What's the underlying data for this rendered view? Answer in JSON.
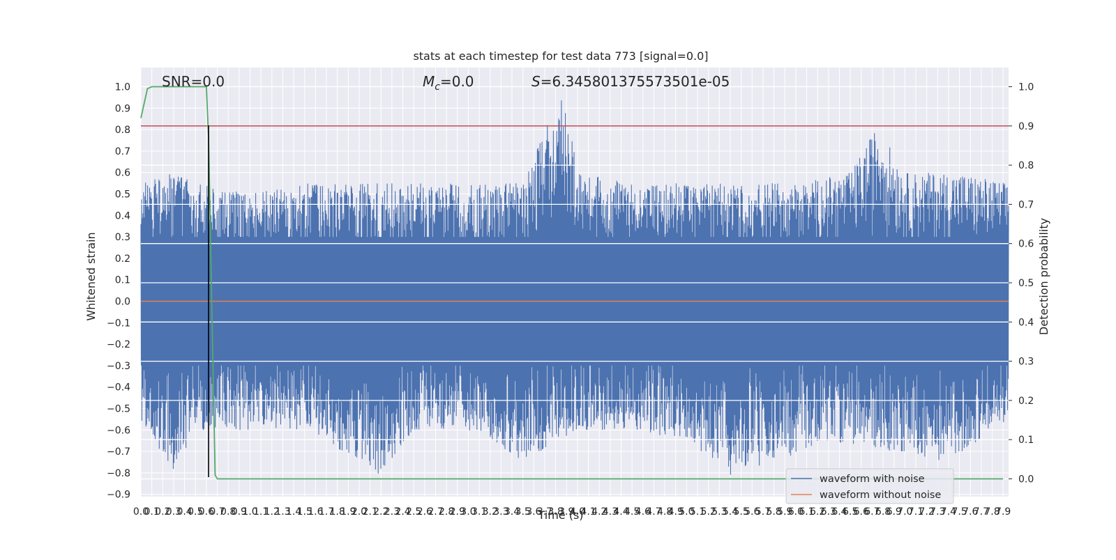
{
  "chart_data": {
    "type": "line",
    "title": "stats at each timestep for test data 773 [signal=0.0]",
    "xlabel": "Time (s)",
    "ylabel": "Whitened strain",
    "y2label": "Detection probability",
    "xlim": [
      0.0,
      7.95
    ],
    "ylim": [
      -0.9,
      1.0
    ],
    "y2lim": [
      0.0,
      1.0
    ],
    "x_ticks": [
      0.0,
      0.1,
      0.2,
      0.3,
      0.4,
      0.5,
      0.6,
      0.7,
      0.8,
      0.9,
      1.0,
      1.1,
      1.2,
      1.3,
      1.4,
      1.5,
      1.6,
      1.7,
      1.8,
      1.9,
      2.0,
      2.1,
      2.2,
      2.3,
      2.4,
      2.5,
      2.6,
      2.7,
      2.8,
      2.9,
      3.0,
      3.1,
      3.2,
      3.3,
      3.4,
      3.5,
      3.6,
      3.7,
      3.8,
      3.9,
      4.0,
      4.1,
      4.2,
      4.3,
      4.4,
      4.5,
      4.6,
      4.7,
      4.8,
      4.9,
      5.0,
      5.1,
      5.2,
      5.3,
      5.4,
      5.5,
      5.6,
      5.7,
      5.8,
      5.9,
      6.0,
      6.1,
      6.2,
      6.3,
      6.4,
      6.5,
      6.6,
      6.7,
      6.8,
      6.9,
      7.0,
      7.1,
      7.2,
      7.3,
      7.4,
      7.5,
      7.6,
      7.7,
      7.8,
      7.9
    ],
    "x_tick_labels": [
      "0.0",
      "0.1",
      "0.2",
      "0.3",
      "0.4",
      "0.5",
      "0.6",
      "0.7",
      "0.8",
      "0.9",
      "1.0",
      "1.1",
      "1.2",
      "1.3",
      "1.4",
      "1.5",
      "1.6",
      "1.7",
      "1.8",
      "1.9",
      "2.0",
      "2.1",
      "2.2",
      "2.3",
      "2.4",
      "2.5",
      "2.6",
      "2.7",
      "2.8",
      "2.9",
      "3.0",
      "3.1",
      "3.2",
      "3.3",
      "3.4",
      "3.5",
      "3.6",
      "3.7",
      "3.8",
      "3.9",
      "4.0",
      "4.1",
      "4.2",
      "4.3",
      "4.4",
      "4.5",
      "4.6",
      "4.7",
      "4.8",
      "4.9",
      "5.0",
      "5.1",
      "5.2",
      "5.3",
      "5.4",
      "5.5",
      "5.6",
      "5.7",
      "5.8",
      "5.9",
      "6.0",
      "6.1",
      "6.2",
      "6.3",
      "6.4",
      "6.5",
      "6.6",
      "6.7",
      "6.8",
      "6.9",
      "7.0",
      "7.1",
      "7.2",
      "7.3",
      "7.4",
      "7.5",
      "7.6",
      "7.7",
      "7.8",
      "7.9"
    ],
    "y_ticks": [
      1.0,
      0.9,
      0.8,
      0.7,
      0.6,
      0.5,
      0.4,
      0.3,
      0.2,
      0.1,
      0.0,
      -0.1,
      -0.2,
      -0.3,
      -0.4,
      -0.5,
      -0.6,
      -0.7,
      -0.8,
      -0.9
    ],
    "y_tick_labels": [
      "1.0",
      "0.9",
      "0.8",
      "0.7",
      "0.6",
      "0.5",
      "0.4",
      "0.3",
      "0.2",
      "0.1",
      "0.0",
      "−0.1",
      "−0.2",
      "−0.3",
      "−0.4",
      "−0.5",
      "−0.6",
      "−0.7",
      "−0.8",
      "−0.9"
    ],
    "y2_ticks": [
      1.0,
      0.9,
      0.8,
      0.7,
      0.6,
      0.5,
      0.4,
      0.3,
      0.2,
      0.1,
      0.0
    ],
    "y2_tick_labels": [
      "1.0",
      "0.9",
      "0.8",
      "0.7",
      "0.6",
      "0.5",
      "0.4",
      "0.3",
      "0.2",
      "0.1",
      "0.0"
    ],
    "series": [
      {
        "name": "waveform with noise",
        "color": "#4c72b0",
        "axis": "left",
        "rendering": "dense noise",
        "envelope_upper": [
          [
            0.0,
            0.55
          ],
          [
            0.3,
            0.6
          ],
          [
            0.5,
            0.55
          ],
          [
            1.0,
            0.5
          ],
          [
            1.5,
            0.55
          ],
          [
            2.0,
            0.55
          ],
          [
            2.5,
            0.55
          ],
          [
            3.0,
            0.55
          ],
          [
            3.5,
            0.55
          ],
          [
            3.87,
            1.0
          ],
          [
            4.0,
            0.6
          ],
          [
            4.5,
            0.55
          ],
          [
            5.0,
            0.55
          ],
          [
            5.5,
            0.55
          ],
          [
            6.0,
            0.55
          ],
          [
            6.5,
            0.6
          ],
          [
            6.75,
            0.82
          ],
          [
            7.0,
            0.6
          ],
          [
            7.5,
            0.6
          ],
          [
            7.95,
            0.55
          ]
        ],
        "envelope_lower": [
          [
            0.0,
            -0.55
          ],
          [
            0.3,
            -0.8
          ],
          [
            0.5,
            -0.6
          ],
          [
            1.0,
            -0.6
          ],
          [
            1.5,
            -0.6
          ],
          [
            2.0,
            -0.75
          ],
          [
            2.17,
            -0.82
          ],
          [
            2.5,
            -0.6
          ],
          [
            3.0,
            -0.6
          ],
          [
            3.5,
            -0.75
          ],
          [
            4.0,
            -0.6
          ],
          [
            4.5,
            -0.6
          ],
          [
            5.0,
            -0.65
          ],
          [
            5.4,
            -0.82
          ],
          [
            5.8,
            -0.75
          ],
          [
            6.3,
            -0.65
          ],
          [
            6.9,
            -0.7
          ],
          [
            7.4,
            -0.75
          ],
          [
            7.95,
            -0.55
          ]
        ]
      },
      {
        "name": "waveform without noise",
        "color": "#dd8452",
        "axis": "left",
        "x": [
          0.0,
          7.95
        ],
        "y": [
          0.0,
          0.0
        ]
      },
      {
        "color": "#55a868",
        "axis": "right",
        "x": [
          0.0,
          0.06,
          0.1,
          0.3,
          0.6,
          0.62,
          0.68,
          0.7,
          7.9
        ],
        "y": [
          0.92,
          0.995,
          1.0,
          1.0,
          1.0,
          0.87,
          0.01,
          0.0,
          0.0
        ]
      }
    ],
    "hlines": [
      {
        "color": "#c44e52",
        "axis": "right",
        "y": 0.9
      }
    ],
    "vlines": [
      {
        "color": "#000000",
        "axis": "left",
        "x": 0.62,
        "y_range": [
          -0.82,
          0.82
        ]
      }
    ],
    "annotations": {
      "snr": "SNR=0.0",
      "mc_symbol": "M",
      "mc_subscript": "c",
      "mc_value": "=0.0",
      "s_symbol": "S",
      "s_value": "=6.345801375573501e-05"
    },
    "legend": {
      "placement": "lower right",
      "entries": [
        "waveform with noise",
        "waveform without noise"
      ]
    },
    "grid": true,
    "background": "#eaeaf2"
  }
}
